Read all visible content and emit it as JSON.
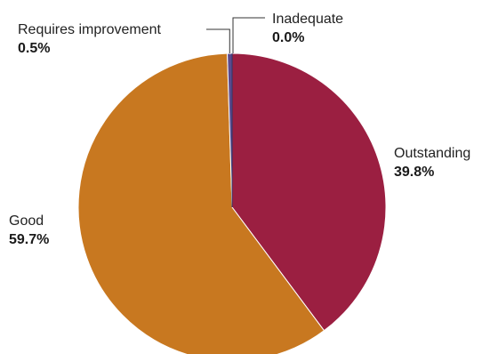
{
  "chart_data": {
    "type": "pie",
    "title": "",
    "start_angle_deg": 0,
    "direction": "clockwise",
    "slices": [
      {
        "label": "Outstanding",
        "value": 39.8,
        "display": "39.8%",
        "color": "#9b1f41"
      },
      {
        "label": "Good",
        "value": 59.7,
        "display": "59.7%",
        "color": "#c87820"
      },
      {
        "label": "Requires improvement",
        "value": 0.5,
        "display": "0.5%",
        "color": "#5b4a8e"
      },
      {
        "label": "Inadequate",
        "value": 0.0,
        "display": "0.0%",
        "color": "#2b3a6b"
      }
    ]
  }
}
